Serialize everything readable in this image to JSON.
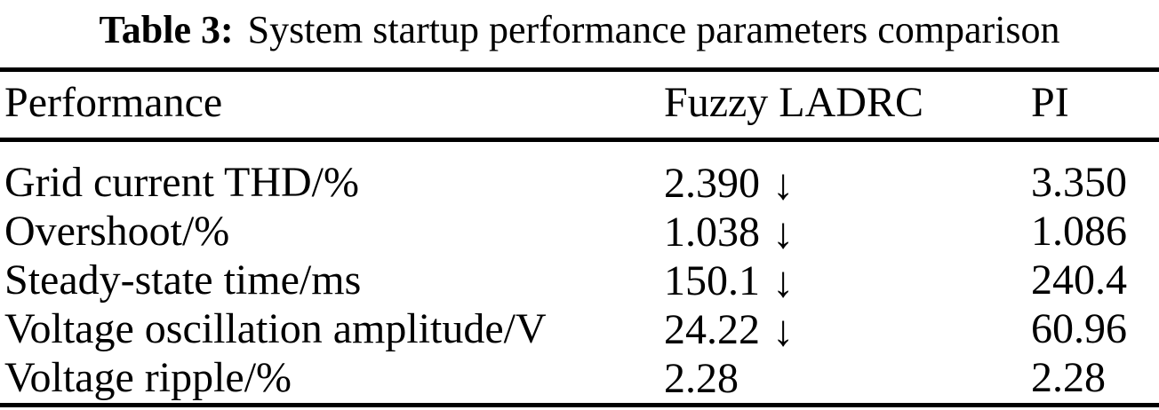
{
  "caption": {
    "label": "Table 3:",
    "text": "System startup performance parameters comparison"
  },
  "table": {
    "columns": {
      "performance": "Performance",
      "fuzzy_ladrc": "Fuzzy LADRC",
      "pi": "PI"
    },
    "rows": [
      {
        "performance": "Grid current THD/%",
        "fuzzy_ladrc": "2.390",
        "fuzzy_ladrc_arrow": "↓",
        "pi": "3.350"
      },
      {
        "performance": "Overshoot/%",
        "fuzzy_ladrc": "1.038",
        "fuzzy_ladrc_arrow": "↓",
        "pi": "1.086"
      },
      {
        "performance": "Steady-state time/ms",
        "fuzzy_ladrc": "150.1",
        "fuzzy_ladrc_arrow": "↓",
        "pi": "240.4"
      },
      {
        "performance": "Voltage oscillation amplitude/V",
        "fuzzy_ladrc": "24.22",
        "fuzzy_ladrc_arrow": "↓",
        "pi": "60.96"
      },
      {
        "performance": "Voltage ripple/%",
        "fuzzy_ladrc": "2.28",
        "pi": "2.28"
      }
    ]
  },
  "colors": {
    "text": "#000000",
    "background": "#ffffff",
    "rule": "#000000"
  },
  "icons": {
    "down_arrow": "↓"
  }
}
